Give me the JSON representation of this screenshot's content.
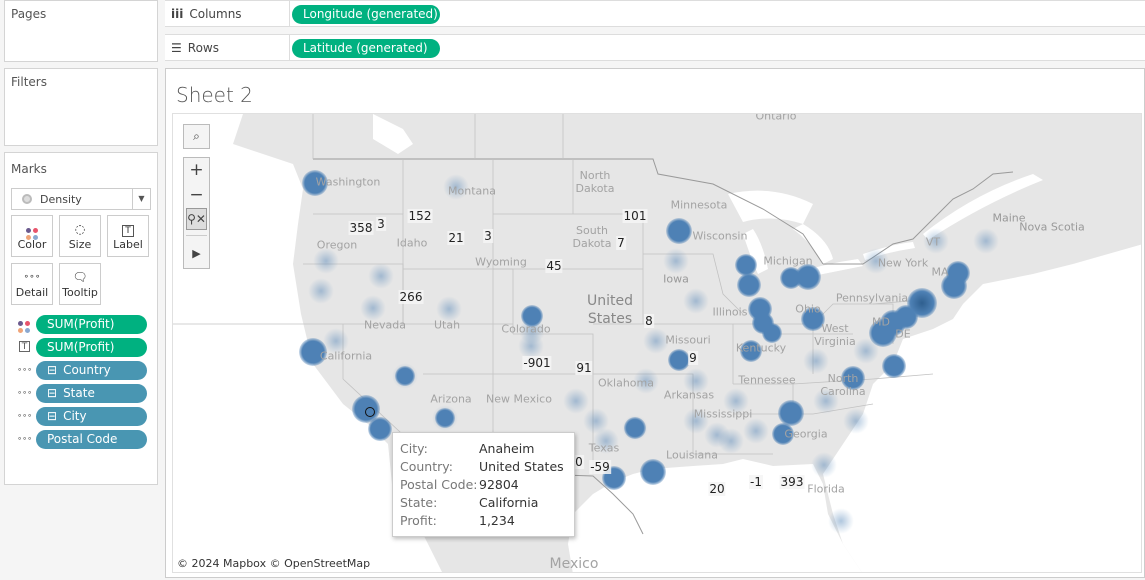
{
  "panels": {
    "pages": "Pages",
    "filters": "Filters",
    "marks": "Marks"
  },
  "marks": {
    "mark_type": "Density",
    "buttons": {
      "color": "Color",
      "size": "Size",
      "label": "Label",
      "detail": "Detail",
      "tooltip": "Tooltip"
    },
    "pills": [
      {
        "label": "SUM(Profit)",
        "role": "color"
      },
      {
        "label": "SUM(Profit)",
        "role": "label"
      },
      {
        "label": "Country",
        "role": "detail"
      },
      {
        "label": "State",
        "role": "detail"
      },
      {
        "label": "City",
        "role": "detail"
      },
      {
        "label": "Postal Code",
        "role": "detail"
      }
    ],
    "collapse_glyph": "⊟"
  },
  "shelves": {
    "columns_label": "Columns",
    "columns_pill": "Longitude (generated)",
    "rows_label": "Rows",
    "rows_pill": "Latitude (generated)"
  },
  "sheet": {
    "title": "Sheet 2"
  },
  "map": {
    "country_label": "United States",
    "region_labels": [
      "Washington",
      "Montana",
      "North Dakota",
      "Minnesota",
      "Oregon",
      "Idaho",
      "South Dakota",
      "Wisconsin",
      "Wyoming",
      "Iowa",
      "Michigan",
      "New York",
      "Maine",
      "Nova Scotia",
      "Nevada",
      "Utah",
      "Colorado",
      "Illinois",
      "Ohio",
      "Pennsylvania",
      "Missouri",
      "California",
      "Kentucky",
      "West Virginia",
      "Tennessee",
      "Oklahoma",
      "North Carolina",
      "Arkansas",
      "Arizona",
      "New Mexico",
      "Mississippi",
      "Georgia",
      "Texas",
      "Louisiana",
      "Florida",
      "Mexico",
      "Ontario",
      "VT",
      "MA",
      "MD",
      "DE"
    ],
    "profit_labels": [
      "358",
      "3",
      "152",
      "21",
      "3",
      "101",
      "7",
      "45",
      "266",
      "8",
      "9",
      "-901",
      "91",
      "-59",
      "20",
      "-1",
      "393",
      "0"
    ],
    "credit": "© 2024 Mapbox © OpenStreetMap",
    "mark_color": "#4e81b5"
  },
  "tooltip": {
    "rows": [
      {
        "key": "City:",
        "value": "Anaheim"
      },
      {
        "key": "Country:",
        "value": "United States"
      },
      {
        "key": "Postal Code:",
        "value": "92804"
      },
      {
        "key": "State:",
        "value": "California"
      },
      {
        "key": "Profit:",
        "value": "1,234"
      }
    ]
  }
}
